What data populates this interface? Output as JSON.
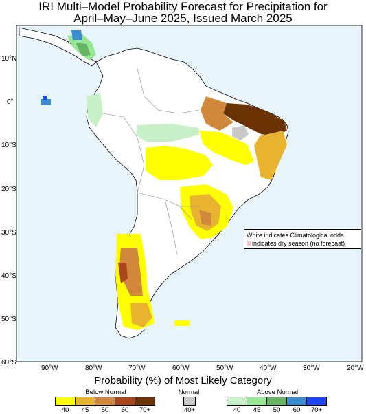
{
  "title": {
    "line1": "IRI Multi–Model Probability Forecast for Precipitation for",
    "line2": "April–May–June 2025, Issued March 2025"
  },
  "axes": {
    "lat_labels": [
      "10°N",
      "0°",
      "10°S",
      "20°S",
      "30°S",
      "40°S",
      "50°S",
      "60°S"
    ],
    "lon_labels": [
      "90°W",
      "80°W",
      "70°W",
      "60°W",
      "50°W",
      "40°W",
      "30°W",
      "20°W"
    ]
  },
  "note": {
    "line1": "White indicates Climatological odds",
    "line2": "indicates dry season (no forecast)"
  },
  "legend": {
    "title": "Probability (%) of Most Likely Category",
    "below": {
      "label": "Below Normal",
      "ticks": [
        "40",
        "45",
        "50",
        "60",
        "70+"
      ],
      "colors": [
        "#ffff00",
        "#e8b430",
        "#d2883a",
        "#a8461c",
        "#6b3204"
      ]
    },
    "normal": {
      "label": "Normal",
      "tick": "40+",
      "color": "#c8c8c8"
    },
    "above": {
      "label": "Above Normal",
      "ticks": [
        "40",
        "45",
        "50",
        "60",
        "70+"
      ],
      "colors": [
        "#c8f0c8",
        "#96e696",
        "#64b464",
        "#3c8cd2",
        "#1e46f0"
      ]
    }
  },
  "colors": {
    "ocean": "#e8f4fb",
    "land": "#ffffff",
    "coast": "#000000"
  }
}
